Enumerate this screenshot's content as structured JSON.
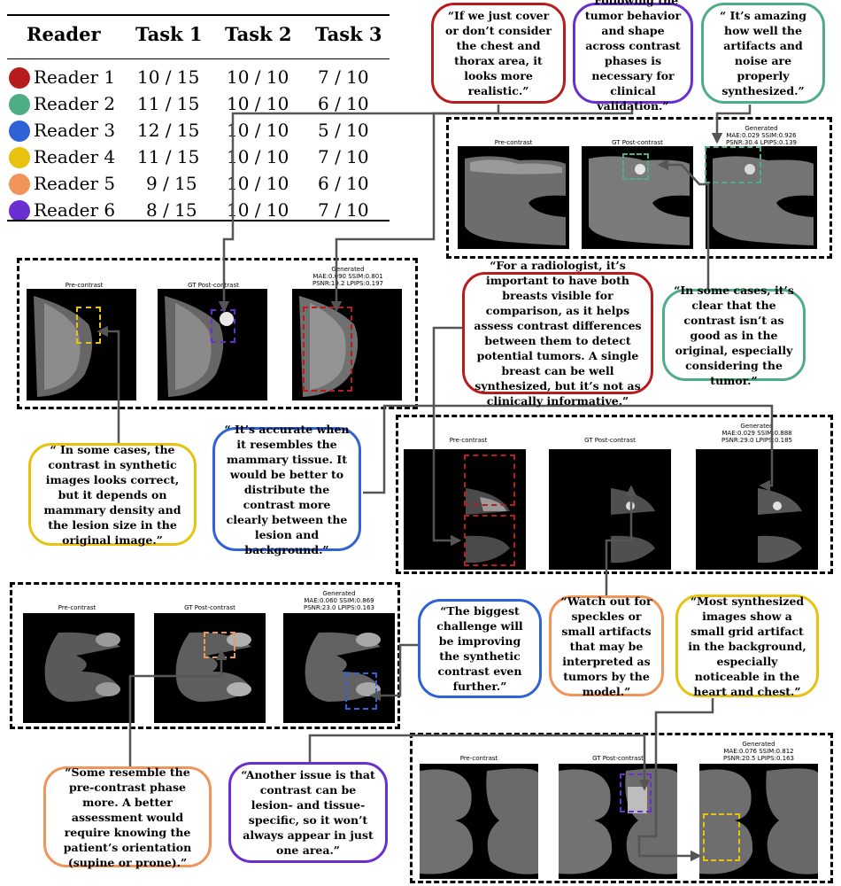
{
  "table": {
    "headers": [
      "Reader",
      "Task 1",
      "Task 2",
      "Task 3"
    ],
    "rows": [
      {
        "reader": "Reader 1",
        "color": "#b81d1d",
        "task1": "10 / 15",
        "task2": "10 / 10",
        "task3": "7 / 10"
      },
      {
        "reader": "Reader 2",
        "color": "#4fad86",
        "task1": "11 / 15",
        "task2": "10 / 10",
        "task3": "6 / 10"
      },
      {
        "reader": "Reader 3",
        "color": "#2f62d6",
        "task1": "12 / 15",
        "task2": "10 / 10",
        "task3": "5 / 10"
      },
      {
        "reader": "Reader 4",
        "color": "#e8c20f",
        "task1": "11 / 15",
        "task2": "10 / 10",
        "task3": "7 / 10"
      },
      {
        "reader": "Reader 5",
        "color": "#f0945a",
        "task1": "9 / 15",
        "task2": "10 / 10",
        "task3": "6 / 10"
      },
      {
        "reader": "Reader 6",
        "color": "#6a2fd1",
        "task1": "8 / 15",
        "task2": "10 / 10",
        "task3": "7 / 10"
      }
    ]
  },
  "quotes": {
    "q1": "“If we just cover or don’t consider the chest and thorax area, it looks more realistic.”",
    "q2": "“Following the tumor behavior and shape across contrast phases is necessary for clinical validation.”",
    "q3": "“ It’s amazing how well the artifacts and noise are properly synthesized.”",
    "q4": "“For a radiologist, it’s important to have both breasts visible for comparison, as it helps assess contrast differences between them to detect potential tumors. A single breast can be well synthesized, but it’s not as clinically informative.”",
    "q5": "“In some cases, it’s clear that the contrast isn’t as good as in the original, especially considering the tumor.”",
    "q6": "“ In some cases, the contrast in synthetic images looks correct, but it depends on mammary density and the lesion size in the original image.”",
    "q7": "“ It’s accurate when it resembles the mammary tissue. It would be better to distribute the contrast more clearly between the lesion and background.”",
    "q8": "“The biggest challenge will be improving the synthetic contrast even further.”",
    "q9": "“Watch out for speckles or small artifacts that may be interpreted as tumors by the model.”",
    "q10": "“Most synthesized images show a small grid artifact in the background, especially noticeable in the heart and chest.”",
    "q11": "“Some resemble the pre-contrast phase more. A better assessment would require knowing the patient’s orientation (supine or prone).”",
    "q12": "“Another issue is that contrast can be lesion- and tissue-specific, so it won’t always appear in just one area.”"
  },
  "panels": {
    "label_pre": "Pre-contrast",
    "label_gt": "GT Post-contrast",
    "label_gen": "Generated",
    "p1_metrics1": "MAE:0.029 SSIM:0.926",
    "p1_metrics2": "PSNR:30.4 LPIPS:0.139",
    "p2_metrics1": "MAE:0.090 SSIM:0.801",
    "p2_metrics2": "PSNR:19.2 LPIPS:0.197",
    "p3_metrics1": "MAE:0.029 SSIM:0.888",
    "p3_metrics2": "PSNR:29.0 LPIPS:0.185",
    "p4_metrics1": "MAE:0.060 SSIM:0.869",
    "p4_metrics2": "PSNR:23.0 LPIPS:0.163",
    "p5_metrics1": "MAE:0.076 SSIM:0.812",
    "p5_metrics2": "PSNR:20.5 LPIPS:0.163"
  }
}
